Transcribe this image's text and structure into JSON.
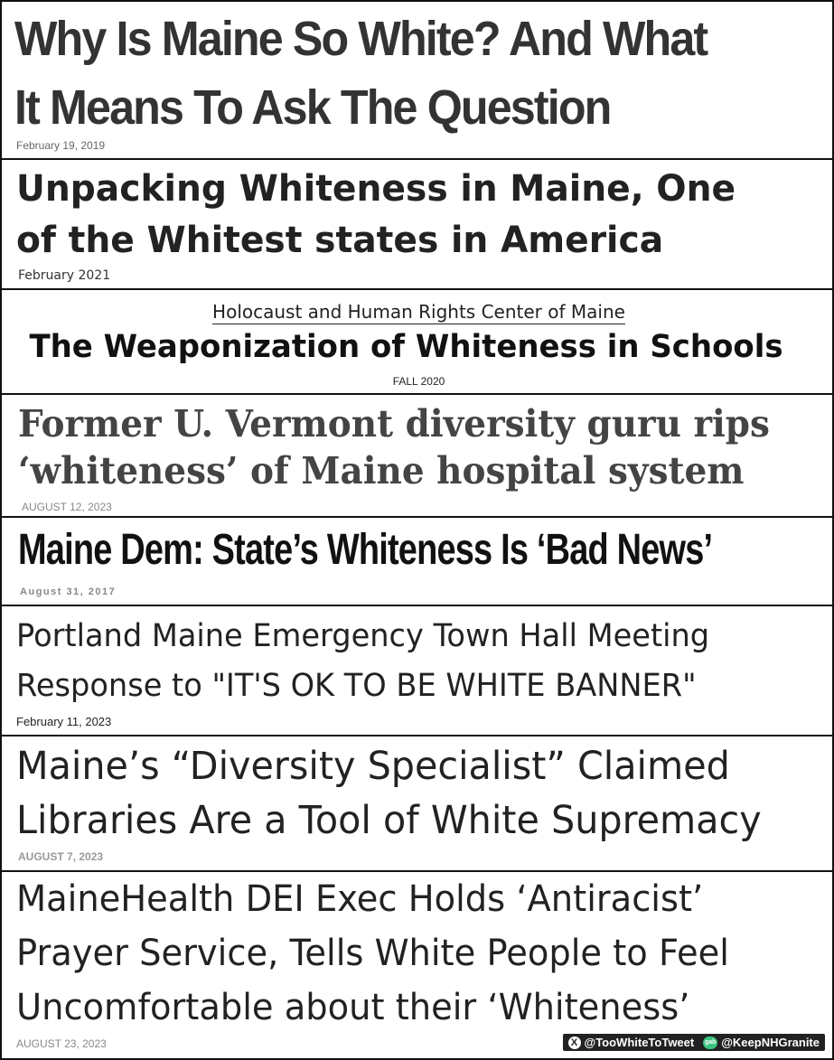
{
  "headlines": [
    {
      "lines": [
        "Why Is Maine So White? And What",
        "It Means To Ask The Question"
      ],
      "date": "February 19, 2019"
    },
    {
      "lines": [
        "Unpacking Whiteness in Maine, One",
        "of the Whitest states in America"
      ],
      "date": "February 2021"
    },
    {
      "source": "Holocaust and Human Rights Center of Maine",
      "lines": [
        "The Weaponization of Whiteness in Schools"
      ],
      "date": "FALL 2020"
    },
    {
      "lines": [
        "Former U. Vermont diversity guru rips",
        "‘whiteness’ of Maine hospital system"
      ],
      "date": "AUGUST 12, 2023"
    },
    {
      "lines": [
        "Maine Dem: State’s Whiteness Is ‘Bad News’"
      ],
      "date": "August 31, 2017"
    },
    {
      "lines": [
        "Portland Maine Emergency Town Hall Meeting",
        "Response to \"IT'S OK TO BE WHITE BANNER\""
      ],
      "date": "February 11, 2023"
    },
    {
      "lines": [
        "Maine’s “Diversity Specialist” Claimed",
        "Libraries Are a Tool of White Supremacy"
      ],
      "date": "AUGUST 7, 2023"
    },
    {
      "lines": [
        "MaineHealth DEI Exec Holds ‘Antiracist’",
        "Prayer Service, Tells White People to Feel",
        "Uncomfortable about their ‘Whiteness’"
      ],
      "date": "AUGUST 23, 2023"
    }
  ],
  "watermark": {
    "x_icon": "x-logo-icon",
    "x_handle": "@TooWhiteToTweet",
    "gab_icon": "gab-logo-icon",
    "gab_label": "gab",
    "gab_handle": "@KeepNHGranite"
  }
}
